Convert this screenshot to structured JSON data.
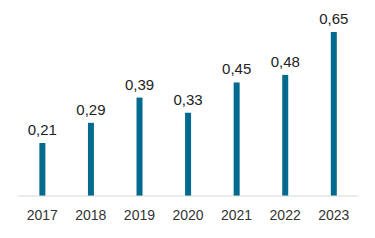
{
  "chart_data": {
    "type": "bar",
    "categories": [
      "2017",
      "2018",
      "2019",
      "2020",
      "2021",
      "2022",
      "2023"
    ],
    "values": [
      0.21,
      0.29,
      0.39,
      0.33,
      0.45,
      0.48,
      0.65
    ],
    "value_labels": [
      "0,21",
      "0,29",
      "0,39",
      "0,33",
      "0,45",
      "0,48",
      "0,65"
    ],
    "color": "#016a8e",
    "data_labels": true,
    "tick_labels": "x",
    "grid": false
  }
}
